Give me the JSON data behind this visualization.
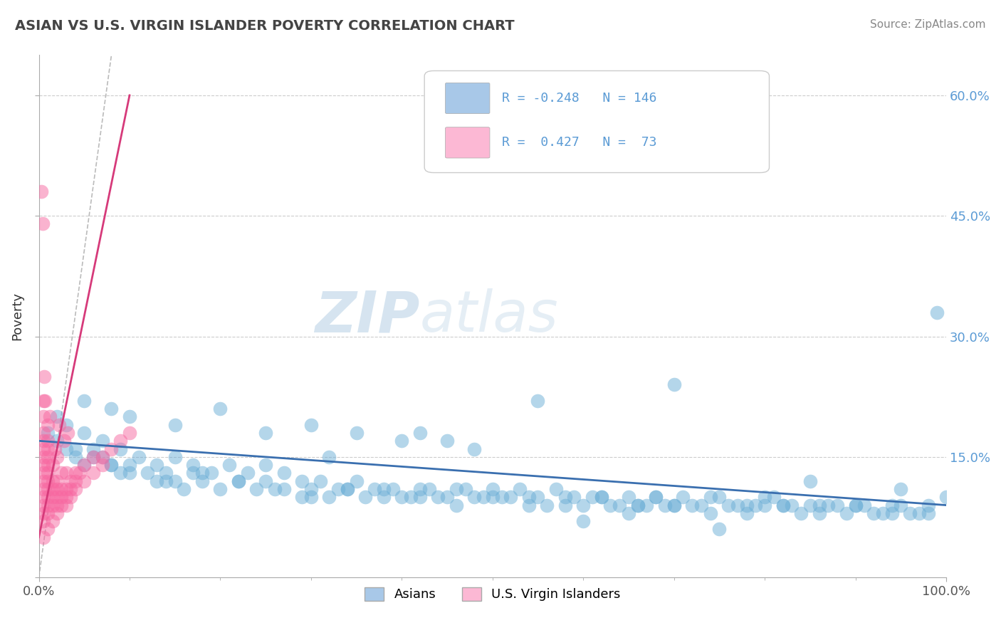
{
  "title": "ASIAN VS U.S. VIRGIN ISLANDER POVERTY CORRELATION CHART",
  "source_text": "Source: ZipAtlas.com",
  "ylabel": "Poverty",
  "watermark_zip": "ZIP",
  "watermark_atlas": "atlas",
  "xlim": [
    0,
    100
  ],
  "ylim": [
    0,
    65
  ],
  "yticks": [
    0,
    15,
    30,
    45,
    60
  ],
  "ytick_labels": [
    "",
    "15.0%",
    "30.0%",
    "45.0%",
    "60.0%"
  ],
  "xtick_labels": [
    "0.0%",
    "100.0%"
  ],
  "blue_color": "#6baed6",
  "pink_color": "#f768a1",
  "blue_fill": "#a8c8e8",
  "pink_fill": "#fcb8d4",
  "trend_blue": "#3a6faf",
  "trend_pink": "#d63a7a",
  "background": "#ffffff",
  "grid_color": "#cccccc",
  "title_color": "#444444",
  "blue_dots_x": [
    1,
    2,
    3,
    4,
    5,
    6,
    7,
    8,
    9,
    10,
    12,
    13,
    14,
    15,
    16,
    17,
    18,
    20,
    22,
    24,
    25,
    27,
    29,
    30,
    32,
    34,
    36,
    38,
    40,
    42,
    44,
    46,
    48,
    50,
    52,
    54,
    56,
    58,
    60,
    62,
    64,
    66,
    68,
    70,
    72,
    74,
    76,
    78,
    80,
    82,
    84,
    86,
    88,
    90,
    92,
    94,
    96,
    98,
    100,
    3,
    5,
    7,
    9,
    11,
    13,
    15,
    17,
    19,
    21,
    23,
    25,
    27,
    29,
    31,
    33,
    35,
    37,
    39,
    41,
    43,
    45,
    47,
    49,
    51,
    53,
    55,
    57,
    59,
    61,
    63,
    65,
    67,
    69,
    71,
    73,
    75,
    77,
    79,
    81,
    83,
    85,
    87,
    89,
    91,
    93,
    95,
    97,
    2,
    4,
    6,
    8,
    10,
    14,
    18,
    22,
    26,
    30,
    34,
    38,
    42,
    46,
    50,
    54,
    58,
    62,
    66,
    70,
    74,
    78,
    82,
    86,
    90,
    94,
    98,
    55,
    70,
    85,
    95,
    99,
    42,
    45,
    48,
    30,
    35,
    40,
    20,
    65,
    80,
    10,
    15,
    25,
    5,
    8,
    60,
    75,
    32,
    68
  ],
  "blue_dots_y": [
    18,
    17,
    16,
    15,
    14,
    16,
    15,
    14,
    13,
    14,
    13,
    12,
    13,
    12,
    11,
    13,
    12,
    11,
    12,
    11,
    12,
    11,
    10,
    11,
    10,
    11,
    10,
    11,
    10,
    11,
    10,
    11,
    10,
    11,
    10,
    10,
    9,
    10,
    9,
    10,
    9,
    9,
    10,
    9,
    9,
    10,
    9,
    9,
    10,
    9,
    8,
    9,
    9,
    9,
    8,
    9,
    8,
    9,
    10,
    19,
    18,
    17,
    16,
    15,
    14,
    15,
    14,
    13,
    14,
    13,
    14,
    13,
    12,
    12,
    11,
    12,
    11,
    11,
    10,
    11,
    10,
    11,
    10,
    10,
    11,
    10,
    11,
    10,
    10,
    9,
    10,
    9,
    9,
    10,
    9,
    10,
    9,
    9,
    10,
    9,
    9,
    9,
    8,
    9,
    8,
    9,
    8,
    20,
    16,
    15,
    14,
    13,
    12,
    13,
    12,
    11,
    10,
    11,
    10,
    10,
    9,
    10,
    9,
    9,
    10,
    9,
    9,
    8,
    8,
    9,
    8,
    9,
    8,
    8,
    22,
    24,
    12,
    11,
    33,
    18,
    17,
    16,
    19,
    18,
    17,
    21,
    8,
    9,
    20,
    19,
    18,
    22,
    21,
    7,
    6,
    15,
    10
  ],
  "pink_dots_x": [
    0.5,
    0.5,
    0.5,
    0.5,
    0.5,
    0.5,
    0.5,
    0.5,
    0.5,
    0.5,
    0.5,
    0.5,
    0.5,
    0.5,
    0.5,
    1.0,
    1.0,
    1.0,
    1.0,
    1.0,
    1.0,
    1.0,
    1.0,
    1.0,
    1.0,
    1.0,
    1.0,
    1.5,
    1.5,
    1.5,
    1.5,
    1.5,
    1.5,
    2.0,
    2.0,
    2.0,
    2.0,
    2.0,
    2.0,
    2.5,
    2.5,
    2.5,
    2.5,
    3.0,
    3.0,
    3.0,
    3.0,
    3.5,
    3.5,
    3.5,
    4.0,
    4.0,
    4.0,
    5.0,
    5.0,
    6.0,
    6.0,
    7.0,
    7.0,
    8.0,
    9.0,
    10.0,
    0.3,
    0.4,
    0.6,
    0.7,
    1.2,
    1.8,
    2.2,
    2.8,
    3.2,
    4.5
  ],
  "pink_dots_y": [
    5,
    7,
    8,
    9,
    10,
    11,
    12,
    13,
    14,
    15,
    16,
    17,
    18,
    20,
    22,
    6,
    8,
    9,
    10,
    11,
    12,
    13,
    14,
    15,
    16,
    17,
    19,
    7,
    9,
    10,
    11,
    12,
    14,
    8,
    9,
    10,
    11,
    12,
    15,
    9,
    10,
    11,
    13,
    9,
    10,
    11,
    13,
    10,
    11,
    12,
    11,
    12,
    13,
    12,
    14,
    13,
    15,
    14,
    15,
    16,
    17,
    18,
    48,
    44,
    25,
    22,
    20,
    16,
    19,
    17,
    18,
    13
  ]
}
